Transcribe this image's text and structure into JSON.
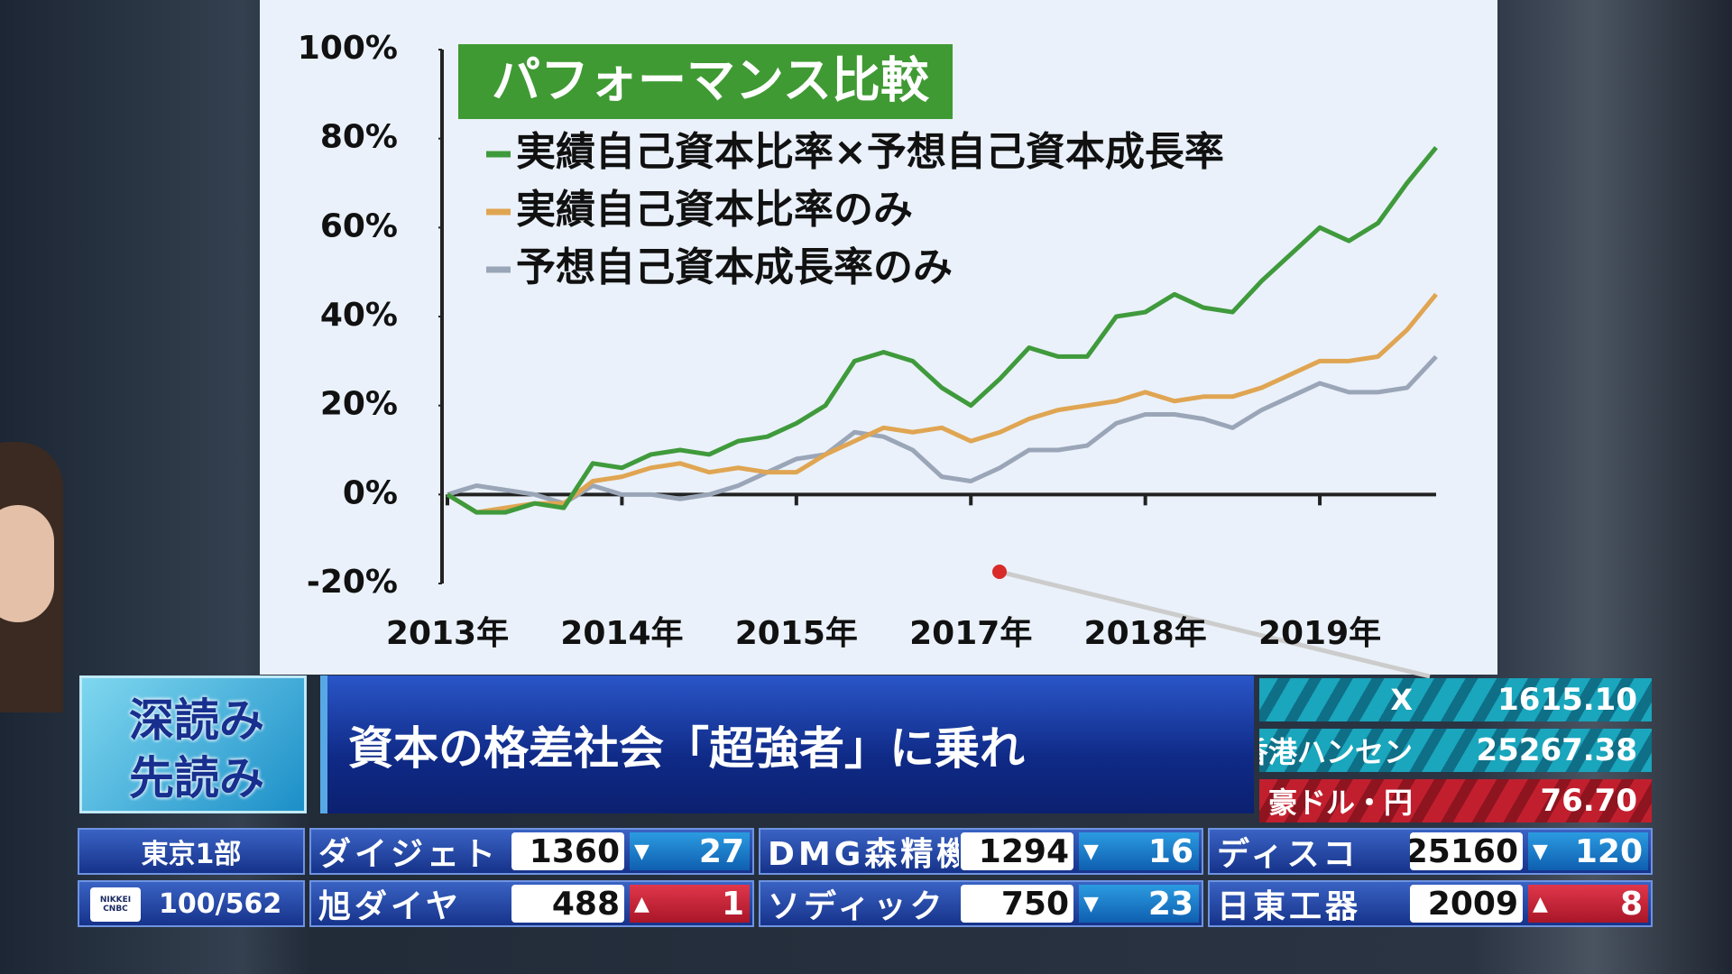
{
  "chart_data": {
    "type": "line",
    "title": "パフォーマンス比較",
    "x": [
      0,
      2,
      4,
      6,
      8,
      10,
      12,
      14,
      16,
      18,
      20,
      22,
      24,
      26,
      28,
      30,
      32,
      34,
      36,
      38,
      40,
      42,
      44,
      46,
      48,
      50,
      52,
      54,
      56,
      58,
      60,
      62,
      64,
      66,
      68
    ],
    "series": [
      {
        "name": "実績自己資本比率×予想自己資本成長率",
        "color": "#3f9a3c",
        "values": [
          0,
          -4,
          -4,
          -2,
          -3,
          7,
          6,
          9,
          10,
          9,
          12,
          13,
          16,
          20,
          30,
          32,
          30,
          24,
          20,
          26,
          33,
          31,
          31,
          40,
          41,
          45,
          42,
          41,
          48,
          54,
          60,
          57,
          61,
          70,
          78
        ]
      },
      {
        "name": "実績自己資本比率のみ",
        "color": "#e0a552",
        "values": [
          0,
          -4,
          -3,
          -2,
          -2,
          3,
          4,
          6,
          7,
          5,
          6,
          5,
          5,
          9,
          12,
          15,
          14,
          15,
          12,
          14,
          17,
          19,
          20,
          21,
          23,
          21,
          22,
          22,
          24,
          27,
          30,
          30,
          31,
          37,
          45
        ]
      },
      {
        "name": "予想自己資本成長率のみ",
        "color": "#9aa6b8",
        "values": [
          0,
          2,
          1,
          0,
          -2,
          2,
          0,
          0,
          -1,
          0,
          2,
          5,
          8,
          9,
          14,
          13,
          10,
          4,
          3,
          6,
          10,
          10,
          11,
          16,
          18,
          18,
          17,
          15,
          19,
          22,
          25,
          23,
          23,
          24,
          31
        ]
      }
    ],
    "xlim": [
      0,
      68
    ],
    "xticks": [
      {
        "value": 0,
        "label": "2013年"
      },
      {
        "value": 12,
        "label": "2014年"
      },
      {
        "value": 24,
        "label": "2015年"
      },
      {
        "value": 36,
        "label": "2017年"
      },
      {
        "value": 48,
        "label": "2018年"
      },
      {
        "value": 60,
        "label": "2019年"
      }
    ],
    "ylim": [
      -20,
      100
    ],
    "yticks": [
      {
        "value": -20,
        "label": "-20%"
      },
      {
        "value": 0,
        "label": "0%"
      },
      {
        "value": 20,
        "label": "20%"
      },
      {
        "value": 40,
        "label": "40%"
      },
      {
        "value": 60,
        "label": "60%"
      },
      {
        "value": 80,
        "label": "80%"
      },
      {
        "value": 100,
        "label": "100%"
      }
    ],
    "grid": false,
    "legend": "upper left"
  },
  "program": {
    "logo": [
      "深読み",
      "先読み"
    ],
    "headline": "資本の格差社会「超強者」に乗れ"
  },
  "indices": [
    {
      "name": "X",
      "value": "1615.10"
    },
    {
      "name": "香港ハンセン",
      "value": "25267.38"
    },
    {
      "name": "豪ドル・円",
      "value": "76.70"
    }
  ],
  "board": {
    "market": "東京1部",
    "count": "100/562",
    "logo": "NIKKEI CNBC",
    "rows": [
      [
        {
          "name": "ダイジェト",
          "price": "1360",
          "arrow": "▼",
          "change": "27"
        },
        {
          "name": "DMG森精機",
          "price": "1294",
          "arrow": "▼",
          "change": "16"
        },
        {
          "name": "ディスコ",
          "price": "25160",
          "arrow": "▼",
          "change": "120"
        }
      ],
      [
        {
          "name": "旭ダイヤ",
          "price": "488",
          "arrow": "▲",
          "change": "1"
        },
        {
          "name": "ソディック",
          "price": "750",
          "arrow": "▼",
          "change": "23"
        },
        {
          "name": "日東工器",
          "price": "2009",
          "arrow": "▲",
          "change": "8"
        }
      ]
    ]
  }
}
